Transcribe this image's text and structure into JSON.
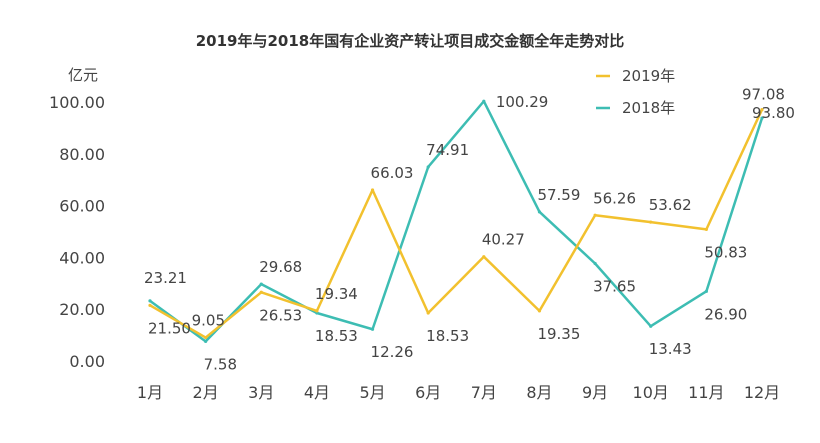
{
  "chart_data": {
    "type": "line",
    "title": "2019年与2018年国有企业资产转让项目成交金额全年走势对比",
    "ylabel": "亿元",
    "xlabel": "",
    "categories": [
      "1月",
      "2月",
      "3月",
      "4月",
      "5月",
      "6月",
      "7月",
      "8月",
      "9月",
      "10月",
      "11月",
      "12月"
    ],
    "ylim": [
      0,
      100
    ],
    "yticks": [
      "0.00",
      "20.00",
      "40.00",
      "60.00",
      "80.00",
      "100.00"
    ],
    "grid": false,
    "legend_position": "top-right",
    "series": [
      {
        "name": "2019年",
        "color": "#F2C12E",
        "values": [
          21.5,
          9.05,
          26.53,
          19.34,
          66.03,
          18.53,
          40.27,
          19.35,
          56.26,
          53.62,
          50.83,
          97.08
        ],
        "labels": [
          "21.50",
          "9.05",
          "26.53",
          "19.34",
          "66.03",
          "18.53",
          "40.27",
          "19.35",
          "56.26",
          "53.62",
          "50.83",
          "97.08"
        ]
      },
      {
        "name": "2018年",
        "color": "#3DBDB3",
        "values": [
          23.21,
          7.58,
          29.68,
          18.53,
          12.26,
          74.91,
          100.29,
          57.59,
          37.65,
          13.43,
          26.9,
          93.8
        ],
        "labels": [
          "23.21",
          "7.58",
          "29.68",
          "18.53",
          "12.26",
          "74.91",
          "100.29",
          "57.59",
          "37.65",
          "13.43",
          "26.90",
          "93.80"
        ]
      }
    ]
  }
}
